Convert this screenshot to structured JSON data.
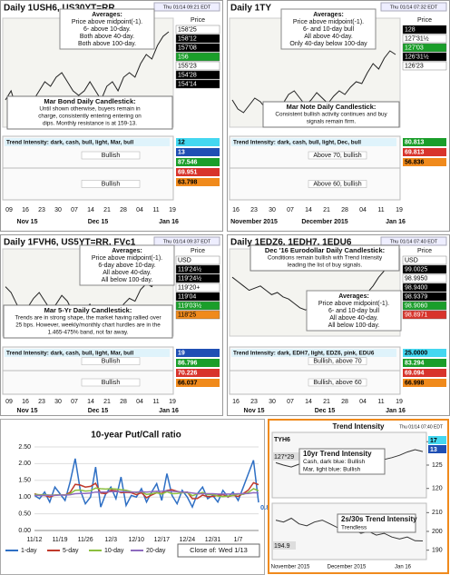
{
  "panels": [
    {
      "title": "Daily 1USH6, US30YT=RR",
      "timestamp": "Thu 01/14 09:21 EDT",
      "averages": [
        "Averages:",
        "Price above midpoint(-1).",
        "6- above 10-day.",
        "Both above 40-day.",
        "Both above 100-day."
      ],
      "note_title": "Mar Bond Daily Candlestick:",
      "note_lines": [
        "Until shown otherwise, buyers remain in",
        "charge, consistently entering entering on",
        "dips. Monthly resistance is at 159-13."
      ],
      "price_label": "Price",
      "price_tags": [
        {
          "label": "158'25",
          "color": "#ffffff"
        },
        {
          "label": "158'12",
          "color": "#000000"
        },
        {
          "label": "157'08",
          "color": "#000000"
        },
        {
          "label": "156",
          "color": "#1a9e2a"
        },
        {
          "label": "155'23",
          "color": "#ffffff"
        },
        {
          "label": "154'28",
          "color": "#000000"
        },
        {
          "label": "154'14",
          "color": "#000000"
        }
      ],
      "trend_label": "Trend Intensity: dark, cash, bull, light, Mar, bull",
      "indicator_labels": [
        "Bullish",
        "Bullish"
      ],
      "indicator_tags": [
        {
          "label": "12",
          "color": "#44d7f0"
        },
        {
          "label": "13",
          "color": "#1f4fb4"
        },
        {
          "label": "87.546",
          "color": "#1a9e2a"
        },
        {
          "label": "69.951",
          "color": "#d8342c"
        },
        {
          "label": "63.798",
          "color": "#f08a1c"
        }
      ],
      "days": [
        "09",
        "16",
        "23",
        "30",
        "07",
        "14",
        "21",
        "28",
        "04",
        "11",
        "19"
      ],
      "months": [
        "Nov 15",
        "Dec 15",
        "Jan 16"
      ],
      "prices": [
        151,
        152,
        150,
        149.5,
        150.5,
        151,
        152,
        153,
        152.5,
        153.5,
        154,
        153,
        152,
        151.5,
        152,
        153,
        152,
        151,
        152.5,
        153,
        152,
        153.5,
        154,
        153.5,
        155,
        156,
        155.5,
        157,
        158,
        158.5
      ],
      "ylim": [
        148,
        160
      ]
    },
    {
      "title": "Daily 1TY",
      "timestamp": "Thu 01/14 07:32 EDT",
      "averages": [
        "Averages:",
        "Price above midpoint(-1).",
        "6- and 10-day bull",
        "All above 40-day.",
        "Only 40-day below 100-day"
      ],
      "note_title": "Mar Note Daily Candlestick:",
      "note_lines": [
        "Consistent bullish activity continues and buy",
        "signals remain firm."
      ],
      "price_label": "Price",
      "price_tags": [
        {
          "label": "128",
          "color": "#000000"
        },
        {
          "label": "127'31½",
          "color": "#ffffff"
        },
        {
          "label": "127'03",
          "color": "#1a9e2a"
        },
        {
          "label": "126'31½",
          "color": "#000000"
        },
        {
          "label": "126'23",
          "color": "#ffffff"
        }
      ],
      "trend_label": "Trend Intensity: dark, cash, bull, light, Dec, bull",
      "indicator_labels": [
        "Above 70, bullish",
        "Above 60, bullish"
      ],
      "indicator_tags": [
        {
          "label": "80.813",
          "color": "#1a9e2a"
        },
        {
          "label": "69.813",
          "color": "#d8342c"
        },
        {
          "label": "56.836",
          "color": "#f08a1c"
        }
      ],
      "days": [
        "16",
        "23",
        "30",
        "07",
        "14",
        "21",
        "28",
        "04",
        "11",
        "19"
      ],
      "months": [
        "November 2015",
        "December 2015",
        "Jan 16"
      ],
      "prices": [
        125.5,
        125,
        124.8,
        125.2,
        125.6,
        125.4,
        125,
        124.6,
        125,
        125.3,
        125.8,
        126,
        125.6,
        125.2,
        125.5,
        125.9,
        125.6,
        125.3,
        125.7,
        126,
        125.8,
        126.2,
        126.5,
        126.4,
        127,
        127.5,
        127.2,
        127.8,
        128.2,
        128
      ],
      "ylim": [
        124,
        130
      ]
    },
    {
      "title": "Daily 1FVH6, US5YT=RR, FVc1",
      "timestamp": "Thu 01/14 09:37 EDT",
      "averages": [
        "Averages:",
        "Price above midpoint(-1).",
        "6-day above 10-day.",
        "All above 40-day.",
        "All below 100-day."
      ],
      "note_title": "Mar 5-Yr Daily Candlestick:",
      "note_lines": [
        "Trends are in strong shape, the market having rallied over",
        "25 bps. However, weekly/monthly chart hurdles are in the",
        "1.465-475% band, not far away."
      ],
      "price_label": "Price",
      "price_tags": [
        {
          "label": "USD",
          "color": "#ffffff"
        },
        {
          "label": "119'24½",
          "color": "#000000"
        },
        {
          "label": "119'24½",
          "color": "#000000"
        },
        {
          "label": "119'20+",
          "color": "#ffffff"
        },
        {
          "label": "119'04",
          "color": "#000000"
        },
        {
          "label": "119'03½",
          "color": "#1a9e2a"
        },
        {
          "label": "118'25",
          "color": "#f08a1c"
        }
      ],
      "trend_label": "Trend Intensity: dark, cash, bull, light, Mar, bull",
      "indicator_labels": [
        "Bullish",
        "Bullish"
      ],
      "indicator_tags": [
        {
          "label": "19",
          "color": "#1f4fb4"
        },
        {
          "label": "86.796",
          "color": "#1a9e2a"
        },
        {
          "label": "70.226",
          "color": "#d8342c"
        },
        {
          "label": "66.037",
          "color": "#f08a1c"
        }
      ],
      "days": [
        "09",
        "16",
        "23",
        "30",
        "07",
        "14",
        "21",
        "28",
        "04",
        "11",
        "19"
      ],
      "months": [
        "Nov 15",
        "Dec 15",
        "Jan 16"
      ],
      "prices": [
        119.2,
        119,
        118.6,
        118.3,
        118.5,
        118.8,
        119,
        118.7,
        118.4,
        118.6,
        118.9,
        118.7,
        118.3,
        118.1,
        118.4,
        118.6,
        118.3,
        118,
        118.2,
        118.5,
        118.3,
        118.6,
        118.8,
        118.7,
        119.1,
        119.3,
        119.2,
        119.6,
        119.9,
        119.8
      ],
      "ylim": [
        117.5,
        120.5
      ]
    },
    {
      "title": "Daily 1EDZ6, 1EDH7, 1EDU6",
      "timestamp": "Thu 01/14 07:40 EDT",
      "averages": [
        "Averages:",
        "Price above midpoint(-1).",
        "6- and 10-day bull",
        "All above 40-day.",
        "All below 100-day."
      ],
      "note_title": "Dec '16 Eurodollar Daily Candlestick:",
      "note_lines": [
        "Conditions remain bullish with Trend Intensity",
        "leading the list of buy signals."
      ],
      "price_label": "Price",
      "price_tags": [
        {
          "label": "USD",
          "color": "#ffffff"
        },
        {
          "label": "99.0025",
          "color": "#000000"
        },
        {
          "label": "98.9950",
          "color": "#ffffff"
        },
        {
          "label": "98.9400",
          "color": "#000000"
        },
        {
          "label": "98.9379",
          "color": "#000000"
        },
        {
          "label": "98.9060",
          "color": "#1a9e2a"
        },
        {
          "label": "98.8971",
          "color": "#d8342c"
        }
      ],
      "trend_label": "Trend Intensity: dark, EDH7, light, EDZ6, pink, EDU6",
      "indicator_labels": [
        "Bullish, above 70",
        "Bullish, above 60"
      ],
      "indicator_tags": [
        {
          "label": "25.0000",
          "color": "#44d7f0"
        },
        {
          "label": "83.294",
          "color": "#1a9e2a"
        },
        {
          "label": "69.094",
          "color": "#d8342c"
        },
        {
          "label": "66.998",
          "color": "#f08a1c"
        }
      ],
      "days": [
        "16",
        "23",
        "30",
        "07",
        "14",
        "21",
        "28",
        "04",
        "11",
        "19"
      ],
      "months": [
        "Nov 15",
        "Dec 15",
        "Jan 16"
      ],
      "prices": [
        98.92,
        98.9,
        98.88,
        98.86,
        98.87,
        98.88,
        98.86,
        98.84,
        98.85,
        98.83,
        98.82,
        98.8,
        98.78,
        98.77,
        98.78,
        98.76,
        98.74,
        98.72,
        98.73,
        98.7,
        98.71,
        98.73,
        98.76,
        98.8,
        98.85,
        98.88,
        98.92,
        98.95,
        98.98,
        99.0
      ],
      "ylim": [
        98.65,
        99.05
      ]
    }
  ],
  "chart_data": {
    "type": "line",
    "title": "10-year Put/Call ratio",
    "categories": [
      "11/12",
      null,
      null,
      null,
      null,
      "11/19",
      null,
      null,
      null,
      null,
      "11/26",
      null,
      null,
      null,
      null,
      "12/3",
      null,
      null,
      null,
      null,
      "12/10",
      null,
      null,
      null,
      null,
      "12/17",
      null,
      null,
      null,
      null,
      "12/24",
      null,
      null,
      null,
      null,
      "12/31",
      null,
      null,
      null,
      null,
      "1/7",
      null,
      null,
      null,
      null
    ],
    "series": [
      {
        "name": "1-day",
        "color": "#2e6fc4",
        "values": [
          1.05,
          0.95,
          1.15,
          0.85,
          1.3,
          1.1,
          0.9,
          1.45,
          2.15,
          1.2,
          0.8,
          1.0,
          1.9,
          0.7,
          1.1,
          1.3,
          0.95,
          1.6,
          0.75,
          1.05,
          1.0,
          1.25,
          0.85,
          1.15,
          1.4,
          0.9,
          1.7,
          1.05,
          0.8,
          1.2,
          1.0,
          0.7,
          1.1,
          1.3,
          0.95,
          1.05,
          0.85,
          1.2,
          1.0,
          1.15,
          0.9,
          1.3,
          1.7,
          2.1,
          0.84
        ]
      },
      {
        "name": "5-day",
        "color": "#c0392b",
        "values": [
          1.1,
          1.05,
          1.05,
          1.0,
          1.06,
          1.07,
          1.06,
          1.14,
          1.38,
          1.36,
          1.3,
          1.32,
          1.41,
          1.12,
          1.1,
          1.2,
          1.19,
          1.13,
          1.14,
          1.13,
          1.07,
          1.13,
          0.98,
          1.06,
          1.13,
          1.11,
          1.2,
          1.22,
          1.17,
          1.13,
          1.15,
          0.95,
          0.96,
          1.06,
          1.01,
          1.02,
          1.05,
          1.07,
          1.01,
          1.05,
          1.02,
          1.11,
          1.21,
          1.43,
          1.37
        ]
      },
      {
        "name": "10-day",
        "color": "#8cbf3f",
        "values": [
          1.08,
          1.07,
          1.07,
          1.06,
          1.06,
          1.07,
          1.06,
          1.1,
          1.2,
          1.21,
          1.18,
          1.19,
          1.27,
          1.25,
          1.24,
          1.25,
          1.24,
          1.22,
          1.2,
          1.16,
          1.13,
          1.16,
          1.08,
          1.1,
          1.13,
          1.09,
          1.16,
          1.1,
          1.11,
          1.13,
          1.13,
          1.04,
          1.09,
          1.14,
          1.07,
          1.08,
          1.03,
          1.01,
          1.03,
          1.05,
          1.09,
          1.08,
          1.14,
          1.25,
          1.19
        ]
      },
      {
        "name": "20-day",
        "color": "#8e6bbf",
        "values": [
          1.05,
          1.05,
          1.05,
          1.05,
          1.05,
          1.06,
          1.06,
          1.07,
          1.1,
          1.11,
          1.11,
          1.12,
          1.15,
          1.15,
          1.15,
          1.16,
          1.16,
          1.16,
          1.16,
          1.15,
          1.15,
          1.16,
          1.15,
          1.16,
          1.17,
          1.17,
          1.19,
          1.17,
          1.16,
          1.15,
          1.14,
          1.12,
          1.1,
          1.1,
          1.1,
          1.1,
          1.09,
          1.09,
          1.09,
          1.09,
          1.1,
          1.1,
          1.11,
          1.13,
          1.12
        ]
      }
    ],
    "ylim": [
      0,
      2.5
    ],
    "yticks": [
      {
        "value": 0,
        "label": "0.00"
      },
      {
        "value": 0.5,
        "label": "0.50"
      },
      {
        "value": 1,
        "label": "1.00"
      },
      {
        "value": 1.5,
        "label": "1.50"
      },
      {
        "value": 2,
        "label": "2.00"
      },
      {
        "value": 2.5,
        "label": "2.50"
      }
    ],
    "grid": true,
    "legend": "bottom",
    "annotation": "Close of: Wed 1/13"
  },
  "trend_panel": {
    "title": "Trend Intensity",
    "timestamp": "Thu 01/14 07:40 EDT",
    "symbol": "TYH6",
    "last": "127*29",
    "spread_last": "194.9",
    "box1": [
      "10yr Trend Intensity",
      "Cash, dark blue: Bullish",
      "Mar, light blue: Bullish"
    ],
    "box2": [
      "2s/30s Trend Intensity",
      "Trendless"
    ],
    "tags": [
      {
        "label": "17",
        "color": "#44d7f0"
      },
      {
        "label": "13",
        "color": "#1f4fb4"
      }
    ],
    "upper_prices": [
      125.5,
      125,
      124.6,
      125.2,
      125.8,
      125.3,
      124.8,
      125.4,
      125.9,
      125.5,
      125.2,
      125.8,
      126.1,
      125.7,
      126.2,
      126.6,
      127.1,
      127.8,
      128.3,
      127.9
    ],
    "upper_ylim": [
      118,
      132
    ],
    "upper_ticks": [
      130,
      125,
      120
    ],
    "lower_prices": [
      206,
      205,
      207,
      204,
      203,
      205,
      206,
      204,
      202,
      203,
      201,
      199,
      200,
      198,
      199,
      197,
      196,
      197,
      195,
      194.9
    ],
    "lower_ylim": [
      185,
      215
    ],
    "lower_ticks": [
      210,
      200,
      190
    ],
    "months": [
      "November 2015",
      "December 2015",
      "Jan 16"
    ]
  }
}
